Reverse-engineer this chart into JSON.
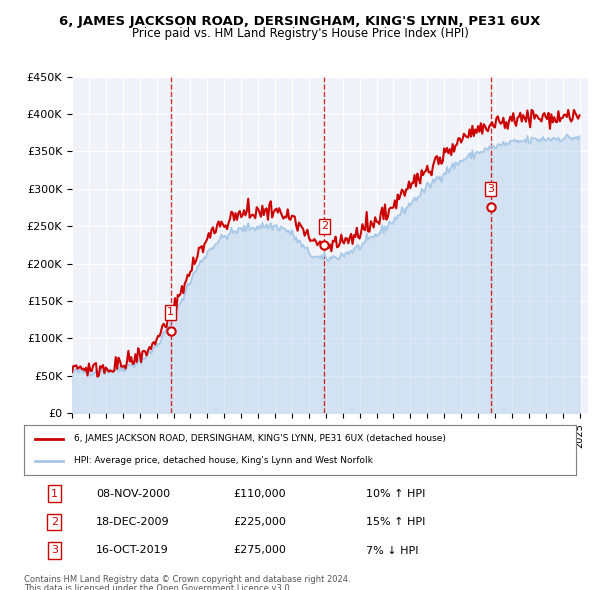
{
  "title": "6, JAMES JACKSON ROAD, DERSINGHAM, KING'S LYNN, PE31 6UX",
  "subtitle": "Price paid vs. HM Land Registry's House Price Index (HPI)",
  "sale_dates": [
    "2000-11-08",
    "2009-12-18",
    "2019-10-16"
  ],
  "sale_prices": [
    110000,
    225000,
    275000
  ],
  "sale_labels": [
    "1",
    "2",
    "3"
  ],
  "sale_info": [
    {
      "num": "1",
      "date": "08-NOV-2000",
      "price": "£110,000",
      "hpi": "10% ↑ HPI"
    },
    {
      "num": "2",
      "date": "18-DEC-2009",
      "price": "£225,000",
      "hpi": "15% ↑ HPI"
    },
    {
      "num": "3",
      "date": "16-OCT-2019",
      "price": "£275,000",
      "hpi": "7% ↓ HPI"
    }
  ],
  "legend_line1": "6, JAMES JACKSON ROAD, DERSINGHAM, KING'S LYNN, PE31 6UX (detached house)",
  "legend_line2": "HPI: Average price, detached house, King's Lynn and West Norfolk",
  "footer1": "Contains HM Land Registry data © Crown copyright and database right 2024.",
  "footer2": "This data is licensed under the Open Government Licence v3.0.",
  "hpi_color": "#a8c8e8",
  "price_color": "#cc0000",
  "vline_color": "#cc0000",
  "bg_color": "#f0f4fa",
  "ylim": [
    0,
    450000
  ],
  "yticks": [
    0,
    50000,
    100000,
    150000,
    200000,
    250000,
    300000,
    350000,
    400000,
    450000
  ]
}
